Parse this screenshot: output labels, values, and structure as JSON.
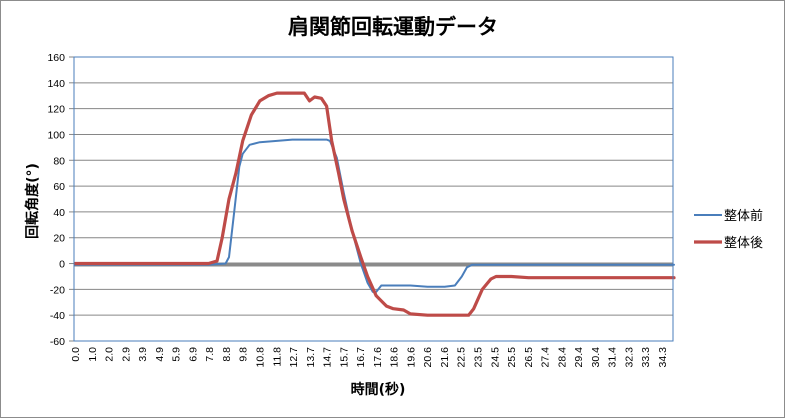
{
  "chart_data": {
    "type": "line",
    "title": "肩関節回転運動データ",
    "xlabel": "時間(秒)",
    "ylabel": "回転角度(°)",
    "ylim": [
      -60,
      160
    ],
    "yticks": [
      160,
      140,
      120,
      100,
      80,
      60,
      40,
      20,
      0,
      -20,
      -40,
      -60
    ],
    "xtick_labels": [
      "0.0",
      "1.0",
      "2.0",
      "2.9",
      "3.9",
      "4.9",
      "5.9",
      "6.9",
      "7.8",
      "8.8",
      "9.8",
      "10.8",
      "11.8",
      "12.7",
      "13.7",
      "14.7",
      "15.7",
      "16.7",
      "17.6",
      "18.6",
      "19.6",
      "20.6",
      "21.6",
      "22.5",
      "23.5",
      "24.5",
      "25.5",
      "26.5",
      "27.4",
      "28.4",
      "29.4",
      "30.4",
      "31.4",
      "32.3",
      "33.3",
      "34.3"
    ],
    "grid": true,
    "legend_position": "right",
    "series": [
      {
        "name": "整体前",
        "color": "#4a7ebb",
        "x": [
          0.0,
          2.0,
          4.9,
          7.8,
          8.8,
          9.0,
          9.3,
          9.6,
          9.8,
          10.2,
          10.8,
          11.8,
          12.7,
          13.7,
          14.7,
          14.9,
          15.3,
          15.7,
          16.2,
          16.7,
          17.1,
          17.4,
          17.6,
          17.9,
          18.6,
          19.6,
          20.6,
          21.6,
          22.2,
          22.6,
          22.9,
          23.2,
          24.5,
          26.5,
          28.4,
          30.4,
          32.3,
          34.3,
          35.0
        ],
        "y": [
          -1,
          -1,
          -1,
          -1,
          0,
          5,
          40,
          75,
          85,
          92,
          94,
          95,
          96,
          96,
          96,
          95,
          82,
          55,
          25,
          0,
          -15,
          -22,
          -22,
          -17,
          -17,
          -17,
          -18,
          -18,
          -17,
          -10,
          -3,
          -1,
          -1,
          -1,
          -1,
          -1,
          -1,
          -1,
          -1
        ]
      },
      {
        "name": "整体後",
        "color": "#be4b48",
        "x": [
          0.0,
          2.0,
          3.9,
          5.9,
          7.8,
          8.3,
          8.6,
          9.0,
          9.4,
          9.8,
          10.3,
          10.8,
          11.3,
          11.8,
          12.7,
          13.4,
          13.7,
          14.0,
          14.4,
          14.7,
          15.0,
          15.4,
          15.7,
          16.2,
          16.7,
          17.1,
          17.6,
          18.2,
          18.6,
          19.2,
          19.6,
          20.6,
          21.6,
          22.5,
          23.0,
          23.3,
          23.8,
          24.3,
          24.6,
          25.5,
          26.5,
          28.4,
          30.4,
          32.3,
          34.3,
          35.0
        ],
        "y": [
          0,
          0,
          0,
          0,
          0,
          2,
          20,
          50,
          70,
          95,
          115,
          126,
          130,
          132,
          132,
          132,
          126,
          129,
          128,
          122,
          95,
          70,
          50,
          25,
          5,
          -10,
          -25,
          -33,
          -35,
          -36,
          -39,
          -40,
          -40,
          -40,
          -40,
          -35,
          -20,
          -12,
          -10,
          -10,
          -11,
          -11,
          -11,
          -11,
          -11,
          -11
        ]
      }
    ]
  },
  "legend": {
    "items": [
      {
        "label": "整体前",
        "color": "#4a7ebb"
      },
      {
        "label": "整体後",
        "color": "#be4b48"
      }
    ]
  }
}
